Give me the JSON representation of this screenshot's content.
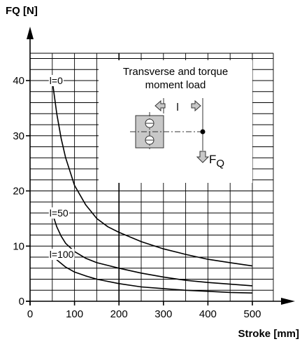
{
  "chart_data": {
    "type": "line",
    "title": "",
    "xlabel": "Stroke [mm]",
    "ylabel": "FQ [N]",
    "xlim": [
      0,
      500
    ],
    "ylim": [
      0,
      40
    ],
    "x_ticks": [
      "0",
      "100",
      "200",
      "300",
      "400",
      "500"
    ],
    "y_ticks": [
      "0",
      "10",
      "20",
      "30",
      "40"
    ],
    "grid": true,
    "series": [
      {
        "name": "l=0",
        "x": [
          50,
          60,
          70,
          80,
          100,
          125,
          150,
          175,
          200,
          250,
          300,
          350,
          400,
          450,
          500
        ],
        "y": [
          40,
          34,
          29.5,
          26,
          21,
          17.5,
          15,
          13.5,
          12.5,
          10.8,
          9.5,
          8.5,
          7.6,
          7,
          6.4
        ]
      },
      {
        "name": "l=50",
        "x": [
          50,
          60,
          70,
          80,
          100,
          125,
          150,
          200,
          250,
          300,
          350,
          400,
          450,
          500
        ],
        "y": [
          16,
          13.5,
          11.8,
          10.5,
          9,
          7.8,
          7,
          6,
          5.1,
          4.4,
          3.8,
          3.4,
          3.1,
          2.8
        ]
      },
      {
        "name": "l=100",
        "x": [
          50,
          60,
          80,
          100,
          125,
          150,
          200,
          250,
          300,
          350,
          400,
          450,
          500
        ],
        "y": [
          8.5,
          7.5,
          6.2,
          5.3,
          4.6,
          4,
          3.2,
          2.6,
          2.3,
          2,
          1.8,
          1.6,
          1.5
        ]
      }
    ],
    "annotations": {
      "inset_line1": "Transverse and torque",
      "inset_line2": "moment load",
      "inset_l": "l",
      "inset_force": "F",
      "inset_force_sub": "Q"
    }
  }
}
